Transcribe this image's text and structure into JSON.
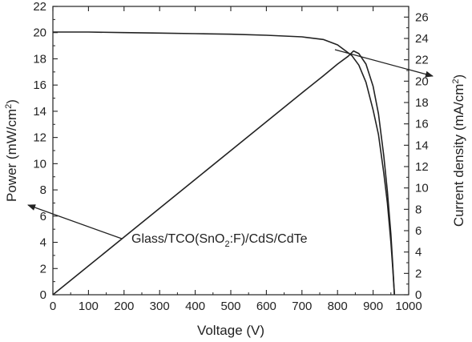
{
  "chart_data": {
    "type": "line",
    "xlabel": "Voltage (V)",
    "xlim": [
      0,
      1000
    ],
    "x_ticks": [
      0,
      100,
      200,
      300,
      400,
      500,
      600,
      700,
      800,
      900,
      1000
    ],
    "y_left": {
      "label": {
        "base": "Power (mW/cm",
        "sup": "2",
        "close": ")"
      },
      "lim": [
        0,
        22
      ],
      "ticks": [
        0,
        2,
        4,
        6,
        8,
        10,
        12,
        14,
        16,
        18,
        20,
        22
      ]
    },
    "y_right": {
      "label": {
        "base": "Current density (mA/cm",
        "sup": "2",
        "close": ")"
      },
      "lim": [
        0,
        27
      ],
      "ticks": [
        0,
        2,
        4,
        6,
        8,
        10,
        12,
        14,
        16,
        18,
        20,
        22,
        24,
        26
      ]
    },
    "series": [
      {
        "axis": "left",
        "points": [
          [
            0,
            0
          ],
          [
            100,
            2.2
          ],
          [
            200,
            4.4
          ],
          [
            300,
            6.6
          ],
          [
            400,
            8.8
          ],
          [
            500,
            11.0
          ],
          [
            600,
            13.2
          ],
          [
            700,
            15.4
          ],
          [
            760,
            16.7
          ],
          [
            800,
            17.6
          ],
          [
            830,
            18.2
          ],
          [
            845,
            18.6
          ],
          [
            860,
            18.4
          ],
          [
            880,
            17.6
          ],
          [
            900,
            15.9
          ],
          [
            915,
            13.8
          ],
          [
            930,
            10.6
          ],
          [
            940,
            7.9
          ],
          [
            950,
            4.6
          ],
          [
            955,
            2.4
          ],
          [
            960,
            0
          ]
        ]
      },
      {
        "axis": "right",
        "points": [
          [
            0,
            24.6
          ],
          [
            100,
            24.6
          ],
          [
            200,
            24.55
          ],
          [
            300,
            24.5
          ],
          [
            400,
            24.45
          ],
          [
            500,
            24.4
          ],
          [
            600,
            24.3
          ],
          [
            700,
            24.15
          ],
          [
            760,
            23.9
          ],
          [
            800,
            23.4
          ],
          [
            840,
            22.4
          ],
          [
            860,
            21.5
          ],
          [
            880,
            19.9
          ],
          [
            900,
            17.3
          ],
          [
            915,
            15.0
          ],
          [
            930,
            11.4
          ],
          [
            940,
            8.6
          ],
          [
            950,
            4.9
          ],
          [
            955,
            2.6
          ],
          [
            960,
            0
          ]
        ]
      }
    ],
    "annotation": {
      "text_before": "Glass/TCO(SnO",
      "subscript": "2",
      "text_after": ":F)/CdS/CdTe"
    }
  }
}
